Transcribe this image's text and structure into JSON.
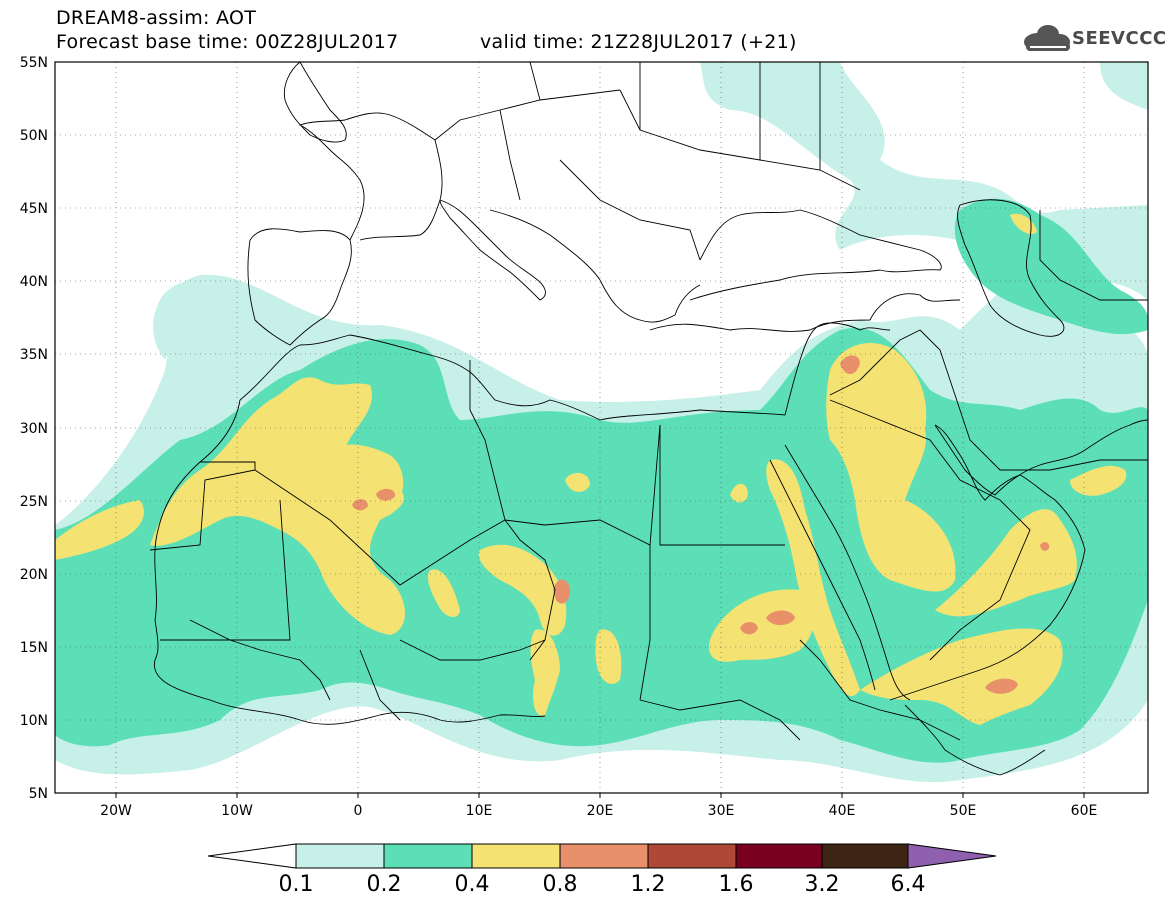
{
  "header": {
    "line1": "DREAM8-assim: AOT",
    "line2": "Forecast base time: 00Z28JUL2017",
    "valid": "valid time: 21Z28JUL2017 (+21)"
  },
  "logo": {
    "text": "SEEVCCC",
    "icon": "cloud-icon"
  },
  "axes": {
    "lat_labels": [
      "55N",
      "50N",
      "45N",
      "40N",
      "35N",
      "30N",
      "25N",
      "20N",
      "15N",
      "10N",
      "5N"
    ],
    "lon_labels": [
      "20W",
      "10W",
      "0",
      "10E",
      "20E",
      "30E",
      "40E",
      "50E",
      "60E"
    ],
    "lon_range": [
      -25,
      65
    ],
    "lat_range": [
      5,
      55
    ],
    "grid": "dotted"
  },
  "colorbar": {
    "labels": [
      "0.1",
      "0.2",
      "0.4",
      "0.8",
      "1.2",
      "1.6",
      "3.2",
      "6.4"
    ],
    "colors": [
      "#ffffff",
      "#c6f0e8",
      "#5cdfb7",
      "#f4e272",
      "#e8906a",
      "#b04838",
      "#7a0020",
      "#3e2414",
      "#8f5fb0"
    ]
  },
  "fields": {
    "c1": "#c6f0e8",
    "c2": "#5cdfb7",
    "c3": "#f4e272",
    "c4": "#e8906a",
    "c5": "#b04838"
  }
}
